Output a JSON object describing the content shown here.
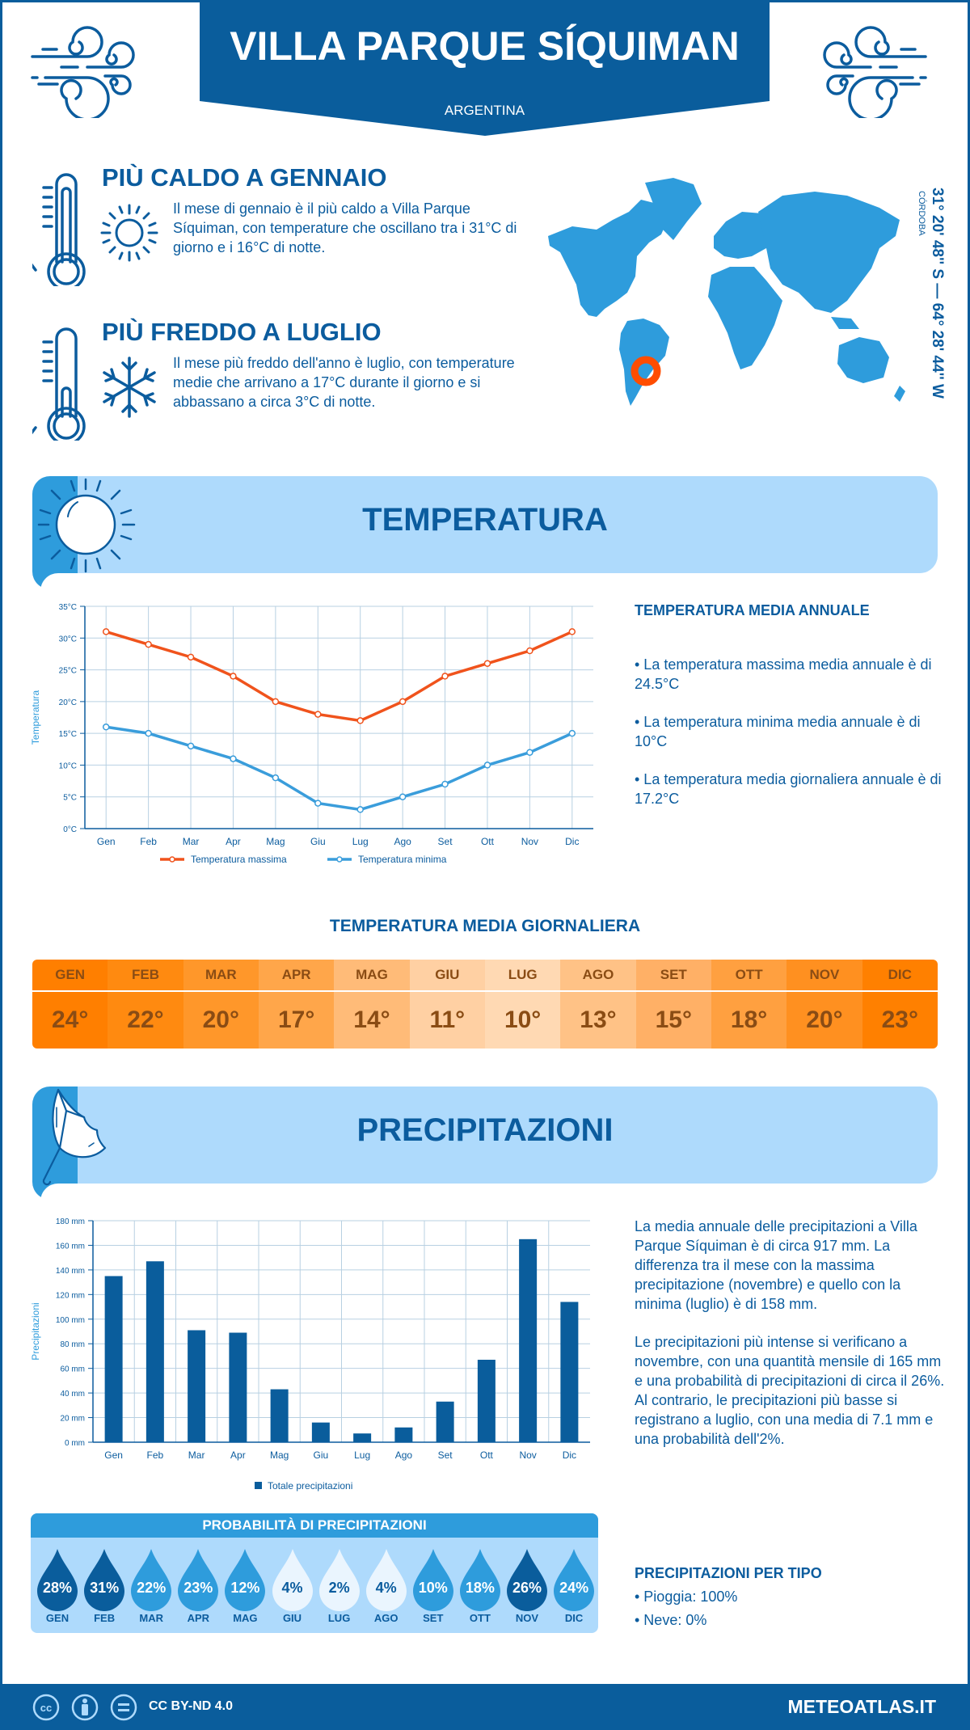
{
  "header": {
    "title": "VILLA PARQUE SÍQUIMAN",
    "country": "ARGENTINA"
  },
  "facts": {
    "hot": {
      "title": "PIÙ CALDO A GENNAIO",
      "text": "Il mese di gennaio è il più caldo a Villa Parque Síquiman, con temperature che oscillano tra i 31°C di giorno e i 16°C di notte."
    },
    "cold": {
      "title": "PIÙ FREDDO A LUGLIO",
      "text": "Il mese più freddo dell'anno è luglio, con temperature medie che arrivano a 17°C durante il giorno e si abbassano a circa 3°C di notte."
    }
  },
  "location": {
    "coordinates": "31° 20' 48'' S — 64° 28' 44'' W",
    "region": "CÓRDOBA"
  },
  "temperature_section": {
    "title": "TEMPERATURA",
    "annual_title": "TEMPERATURA MEDIA ANNUALE",
    "annual_items": [
      "• La temperatura massima media annuale è di 24.5°C",
      "• La temperatura minima media annuale è di 10°C",
      "• La temperatura media giornaliera annuale è di 17.2°C"
    ],
    "daily_title": "TEMPERATURA MEDIA GIORNALIERA",
    "daily": [
      {
        "month": "GEN",
        "value": "24°",
        "color": "#ff7f00"
      },
      {
        "month": "FEB",
        "value": "22°",
        "color": "#ff8a10"
      },
      {
        "month": "MAR",
        "value": "20°",
        "color": "#ff972a"
      },
      {
        "month": "APR",
        "value": "17°",
        "color": "#ffa64a"
      },
      {
        "month": "MAG",
        "value": "14°",
        "color": "#ffbb78"
      },
      {
        "month": "GIU",
        "value": "11°",
        "color": "#ffd0a3"
      },
      {
        "month": "LUG",
        "value": "10°",
        "color": "#ffd9b3"
      },
      {
        "month": "AGO",
        "value": "13°",
        "color": "#ffc286"
      },
      {
        "month": "SET",
        "value": "15°",
        "color": "#ffb066"
      },
      {
        "month": "OTT",
        "value": "18°",
        "color": "#ffa040"
      },
      {
        "month": "NOV",
        "value": "20°",
        "color": "#ff9020"
      },
      {
        "month": "DIC",
        "value": "23°",
        "color": "#ff8000"
      }
    ]
  },
  "precip_section": {
    "title": "PRECIPITAZIONI",
    "paragraph1": "La media annuale delle precipitazioni a Villa Parque Síquiman è di circa 917 mm. La differenza tra il mese con la massima precipitazione (novembre) e quello con la minima (luglio) è di 158 mm.",
    "paragraph2": "Le precipitazioni più intense si verificano a novembre, con una quantità mensile di 165 mm e una probabilità di precipitazioni di circa il 26%. Al contrario, le precipitazioni più basse si registrano a luglio, con una media di 7.1 mm e una probabilità dell'2%.",
    "prob_title": "PROBABILITÀ DI PRECIPITAZIONI",
    "probabilities": [
      {
        "month": "GEN",
        "value": "28%",
        "color": "#0a5d9c",
        "text_color": "#ffffff"
      },
      {
        "month": "FEB",
        "value": "31%",
        "color": "#0a5d9c",
        "text_color": "#ffffff"
      },
      {
        "month": "MAR",
        "value": "22%",
        "color": "#2e9cdc",
        "text_color": "#ffffff"
      },
      {
        "month": "APR",
        "value": "23%",
        "color": "#2e9cdc",
        "text_color": "#ffffff"
      },
      {
        "month": "MAG",
        "value": "12%",
        "color": "#2e9cdc",
        "text_color": "#ffffff"
      },
      {
        "month": "GIU",
        "value": "4%",
        "color": "#eaf5fe",
        "text_color": "#0b5c9e"
      },
      {
        "month": "LUG",
        "value": "2%",
        "color": "#eaf5fe",
        "text_color": "#0b5c9e"
      },
      {
        "month": "AGO",
        "value": "4%",
        "color": "#eaf5fe",
        "text_color": "#0b5c9e"
      },
      {
        "month": "SET",
        "value": "10%",
        "color": "#2e9cdc",
        "text_color": "#ffffff"
      },
      {
        "month": "OTT",
        "value": "18%",
        "color": "#2e9cdc",
        "text_color": "#ffffff"
      },
      {
        "month": "NOV",
        "value": "26%",
        "color": "#0a5d9c",
        "text_color": "#ffffff"
      },
      {
        "month": "DIC",
        "value": "24%",
        "color": "#2e9cdc",
        "text_color": "#ffffff"
      }
    ],
    "type_title": "PRECIPITAZIONI PER TIPO",
    "types": [
      "• Pioggia: 100%",
      "• Neve: 0%"
    ]
  },
  "footer": {
    "license": "CC BY-ND 4.0",
    "site": "METEOATLAS.IT"
  },
  "chart_data": [
    {
      "type": "line",
      "title": "",
      "xlabel": "",
      "ylabel": "Temperatura",
      "categories": [
        "Gen",
        "Feb",
        "Mar",
        "Apr",
        "Mag",
        "Giu",
        "Lug",
        "Ago",
        "Set",
        "Ott",
        "Nov",
        "Dic"
      ],
      "ylim": [
        0,
        35
      ],
      "yticks": [
        0,
        5,
        10,
        15,
        20,
        25,
        30,
        35
      ],
      "ytick_labels": [
        "0°C",
        "5°C",
        "10°C",
        "15°C",
        "20°C",
        "25°C",
        "30°C",
        "35°C"
      ],
      "grid": true,
      "legend": "bottom",
      "series": [
        {
          "name": "Temperatura massima",
          "color": "#f0531c",
          "values": [
            31,
            29,
            27,
            24,
            20,
            18,
            17,
            20,
            24,
            26,
            28,
            31
          ]
        },
        {
          "name": "Temperatura minima",
          "color": "#3a9ddb",
          "values": [
            16,
            15,
            13,
            11,
            8,
            4,
            3,
            5,
            7,
            10,
            12,
            15
          ]
        }
      ]
    },
    {
      "type": "bar",
      "title": "",
      "xlabel": "",
      "ylabel": "Precipitazioni",
      "categories": [
        "Gen",
        "Feb",
        "Mar",
        "Apr",
        "Mag",
        "Giu",
        "Lug",
        "Ago",
        "Set",
        "Ott",
        "Nov",
        "Dic"
      ],
      "ylim": [
        0,
        180
      ],
      "yticks": [
        0,
        20,
        40,
        60,
        80,
        100,
        120,
        140,
        160,
        180
      ],
      "ytick_labels": [
        "0 mm",
        "20 mm",
        "40 mm",
        "60 mm",
        "80 mm",
        "100 mm",
        "120 mm",
        "140 mm",
        "160 mm",
        "180 mm"
      ],
      "grid": true,
      "legend": "bottom",
      "series": [
        {
          "name": "Totale precipitazioni",
          "color": "#0a5d9c",
          "values": [
            135,
            147,
            91,
            89,
            43,
            16,
            7.1,
            12,
            33,
            67,
            165,
            114
          ]
        }
      ]
    }
  ]
}
